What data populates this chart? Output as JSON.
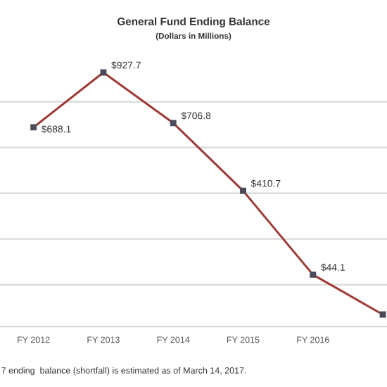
{
  "chart_data": {
    "type": "line",
    "title": "General Fund Ending Balance",
    "subtitle": "(Dollars in Millions)",
    "categories": [
      "FY 2012",
      "FY 2013",
      "FY 2014",
      "FY 2015",
      "FY 2016",
      null
    ],
    "series": [
      {
        "color": "#9e3b37",
        "values": [
          688.1,
          927.7,
          706.8,
          410.7,
          44.1,
          -130
        ],
        "value_labels": [
          "$688.1",
          "$927.7",
          "$706.8",
          "$410.7",
          "$44.1",
          null
        ]
      }
    ],
    "grid": "y",
    "marker": "square",
    "line_style": "solid",
    "annotations": [
      "7 ending  balance (shortfall) is estimated as of March 14, 2017."
    ]
  }
}
